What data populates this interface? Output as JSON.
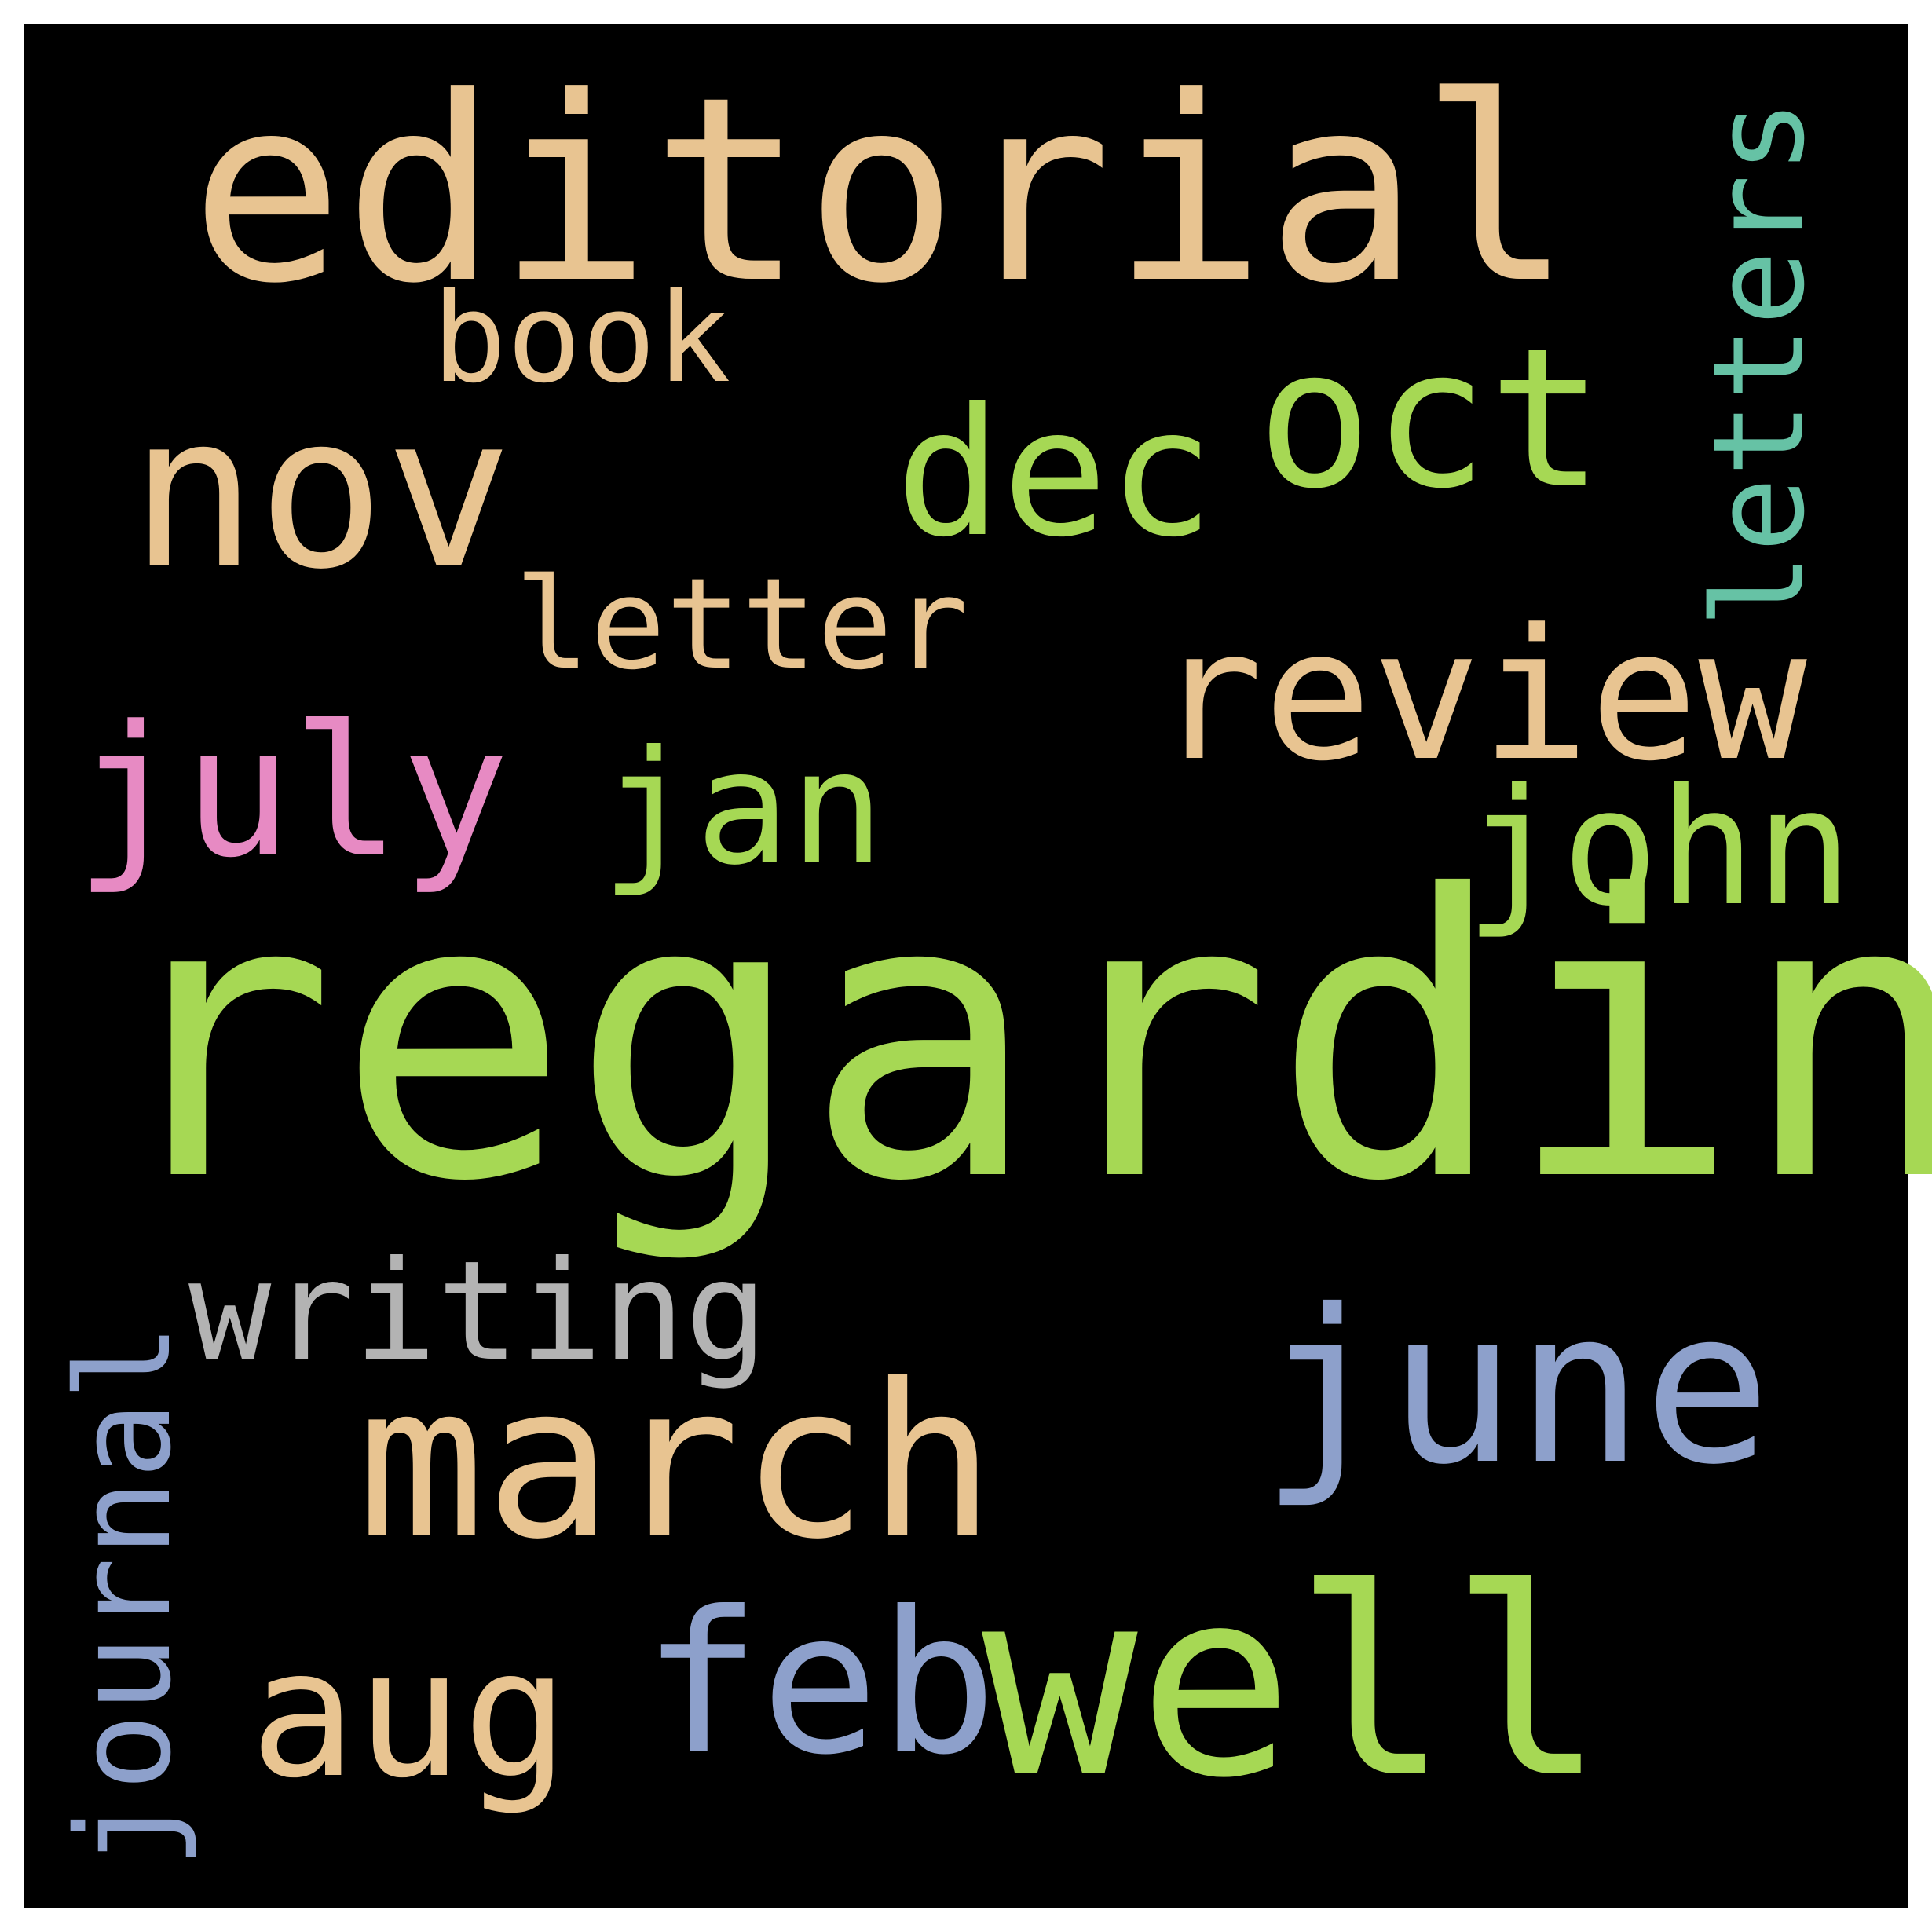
{
  "background_color": "#000000",
  "frame_color": "#ffffff",
  "palette": {
    "tan": "#e8c491",
    "green": "#a6d854",
    "blue": "#8da0cb",
    "pink": "#e78ac3",
    "teal": "#66c2a5",
    "gray": "#b3b3b3"
  },
  "words": [
    {
      "text": "editorial",
      "color": "#e8c491",
      "rotated": false
    },
    {
      "text": "book",
      "color": "#e8c491",
      "rotated": false
    },
    {
      "text": "nov",
      "color": "#e8c491",
      "rotated": false
    },
    {
      "text": "dec",
      "color": "#a6d854",
      "rotated": false
    },
    {
      "text": "oct",
      "color": "#a6d854",
      "rotated": false
    },
    {
      "text": "letters",
      "color": "#66c2a5",
      "rotated": true
    },
    {
      "text": "letter",
      "color": "#e8c491",
      "rotated": false
    },
    {
      "text": "review",
      "color": "#e8c491",
      "rotated": false
    },
    {
      "text": "july",
      "color": "#e78ac3",
      "rotated": false
    },
    {
      "text": "jan",
      "color": "#a6d854",
      "rotated": false
    },
    {
      "text": "john",
      "color": "#a6d854",
      "rotated": false
    },
    {
      "text": "regarding",
      "color": "#a6d854",
      "rotated": false
    },
    {
      "text": "journal",
      "color": "#8da0cb",
      "rotated": true
    },
    {
      "text": "writing",
      "color": "#b3b3b3",
      "rotated": false
    },
    {
      "text": "june",
      "color": "#8da0cb",
      "rotated": false
    },
    {
      "text": "march",
      "color": "#e8c491",
      "rotated": false
    },
    {
      "text": "aug",
      "color": "#e8c491",
      "rotated": false
    },
    {
      "text": "feb",
      "color": "#8da0cb",
      "rotated": false
    },
    {
      "text": "well",
      "color": "#a6d854",
      "rotated": false
    }
  ]
}
